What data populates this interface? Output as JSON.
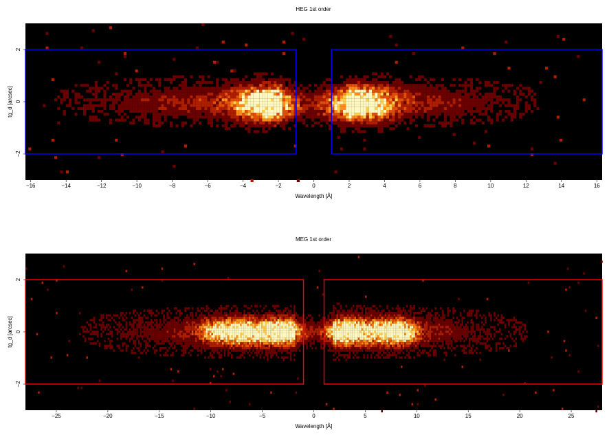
{
  "chart_data": [
    {
      "type": "heatmap",
      "title": "HEG 1st order",
      "xlabel": "Wavelength [Å]",
      "ylabel": "tg_d [arcsec]",
      "xlim": [
        -16.3,
        16.3
      ],
      "ylim": [
        -3,
        3
      ],
      "xticks": [
        -16,
        -14,
        -12,
        -10,
        -8,
        -6,
        -4,
        -2,
        0,
        2,
        4,
        6,
        8,
        10,
        12,
        14,
        16
      ],
      "xtick_labels": [
        "−16",
        "−14",
        "−12",
        "−10",
        "−8",
        "−6",
        "−4",
        "−2",
        "0",
        "2",
        "4",
        "6",
        "8",
        "10",
        "12",
        "14",
        "16"
      ],
      "yticks": [
        -2,
        0,
        2
      ],
      "ytick_labels": [
        "−2",
        "0",
        "2"
      ],
      "colormap": [
        "#000000",
        "#6b0000",
        "#b01e00",
        "#e0500a",
        "#ff8c1a",
        "#ffd050",
        "#fff8c0"
      ],
      "extraction_regions": {
        "color": "#0000ff",
        "boxes": [
          {
            "x": [
              -16.3,
              -1.0
            ],
            "y": [
              -2.0,
              2.0
            ]
          },
          {
            "x": [
              1.0,
              16.3
            ],
            "y": [
              -2.0,
              2.0
            ]
          }
        ]
      },
      "peaks": [
        {
          "x": -2.6,
          "y": -0.1,
          "intensity": 1.0,
          "span_x": 1.6,
          "span_y": 0.55
        },
        {
          "x": 2.4,
          "y": -0.1,
          "intensity": 1.0,
          "span_x": 1.8,
          "span_y": 0.55
        }
      ],
      "emission_extent": {
        "left": [
          -15.5,
          -1.8
        ],
        "right": [
          1.8,
          13.5
        ]
      }
    },
    {
      "type": "heatmap",
      "title": "MEG 1st order",
      "xlabel": "Wavelength [Å]",
      "ylabel": "tg_d [arcsec]",
      "xlim": [
        -28,
        28
      ],
      "ylim": [
        -3,
        3
      ],
      "xticks": [
        -25,
        -20,
        -15,
        -10,
        -5,
        0,
        5,
        10,
        15,
        20,
        25
      ],
      "xtick_labels": [
        "−25",
        "−20",
        "−15",
        "−10",
        "−5",
        "0",
        "5",
        "10",
        "15",
        "20",
        "25"
      ],
      "yticks": [
        -2,
        0,
        2
      ],
      "ytick_labels": [
        "−2",
        "0",
        "2"
      ],
      "colormap": [
        "#000000",
        "#6b0000",
        "#b01e00",
        "#e0500a",
        "#ff8c1a",
        "#ffd050",
        "#fff8c0"
      ],
      "extraction_regions": {
        "color": "#ff0000",
        "boxes": [
          {
            "x": [
              -28,
              -1.0
            ],
            "y": [
              -2.0,
              2.0
            ]
          },
          {
            "x": [
              1.0,
              28
            ],
            "y": [
              -2.0,
              2.0
            ]
          }
        ]
      },
      "peaks": [
        {
          "x": -3.2,
          "y": 0.0,
          "intensity": 1.0,
          "span_x": 2.2,
          "span_y": 0.4
        },
        {
          "x": -6.8,
          "y": 0.0,
          "intensity": 0.75,
          "span_x": 1.8,
          "span_y": 0.4
        },
        {
          "x": -9.2,
          "y": 0.0,
          "intensity": 0.6,
          "span_x": 1.8,
          "span_y": 0.4
        },
        {
          "x": 3.0,
          "y": 0.0,
          "intensity": 1.0,
          "span_x": 2.0,
          "span_y": 0.4
        },
        {
          "x": 6.8,
          "y": 0.0,
          "intensity": 0.8,
          "span_x": 1.8,
          "span_y": 0.4
        },
        {
          "x": 8.6,
          "y": 0.0,
          "intensity": 0.7,
          "span_x": 1.4,
          "span_y": 0.4
        }
      ],
      "emission_extent": {
        "left": [
          -24,
          -1.8
        ],
        "right": [
          1.8,
          22
        ]
      }
    }
  ]
}
